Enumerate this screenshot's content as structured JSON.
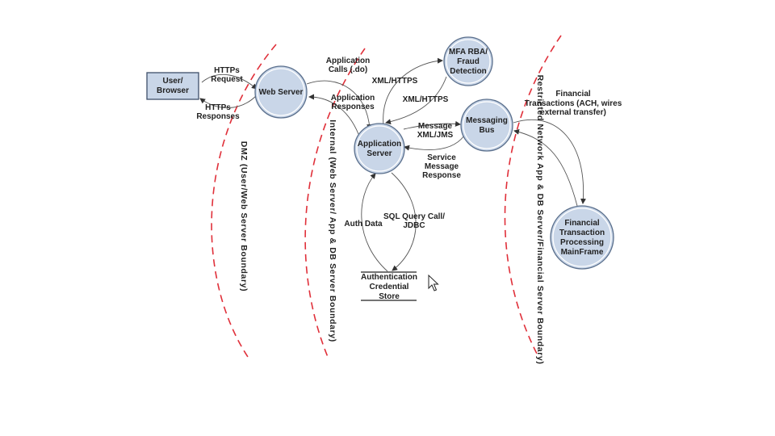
{
  "diagram": {
    "nodes": {
      "user_browser": [
        "User/",
        "Browser"
      ],
      "web_server": [
        "Web Server"
      ],
      "mfa_fraud": [
        "MFA RBA/",
        "Fraud",
        "Detection"
      ],
      "application_server": [
        "Application",
        "Server"
      ],
      "messaging_bus": [
        "Messaging",
        "Bus"
      ],
      "financial_mainframe": [
        "Financial",
        "Transaction",
        "Processing",
        "MainFrame"
      ],
      "auth_store": [
        "Authentication",
        "Credential",
        "Store"
      ]
    },
    "edges": {
      "https_request": [
        "HTTPs",
        "Request"
      ],
      "https_responses": [
        "HTTPs",
        "Responses"
      ],
      "application_calls": [
        "Application",
        "Calls (.do)"
      ],
      "application_responses": [
        "Application",
        "Responses"
      ],
      "xml_https_1": [
        "XML/HTTPS"
      ],
      "xml_https_2": [
        "XML/HTTPS"
      ],
      "message_xml_jms": [
        "Message",
        "XML/JMS"
      ],
      "service_message_response": [
        "Service",
        "Message",
        "Response"
      ],
      "financial_transactions": [
        "Financial",
        "Transactions (ACH, wires",
        "external transfer)"
      ],
      "auth_data": [
        "Auth Data"
      ],
      "sql_query_call": [
        "SQL Query Call/",
        "JDBC"
      ]
    },
    "boundaries": {
      "dmz": "DMZ (User/Web Server Boundary)",
      "internal": "Internal (Web Server/ App & DB Server Boundary)",
      "restricted": "Restricted Network App & DB Server/Financial Server Boundary)"
    },
    "colors": {
      "node_fill": "#c9d6e8",
      "boundary": "#e0303a"
    },
    "cursor": "mouse-pointer-icon"
  }
}
